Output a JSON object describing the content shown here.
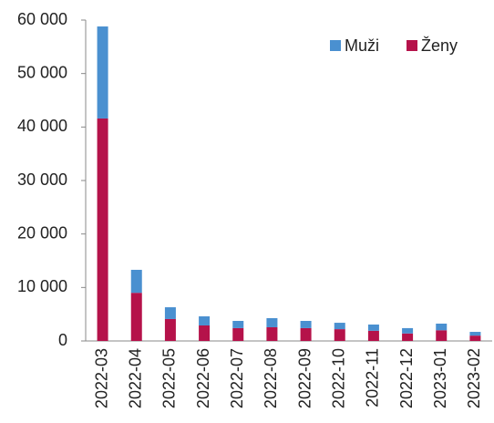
{
  "chart_data": {
    "type": "stacked_bar",
    "categories": [
      "2022-03",
      "2022-04",
      "2022-05",
      "2022-06",
      "2022-07",
      "2022-08",
      "2022-09",
      "2022-10",
      "2022-11",
      "2022-12",
      "2023-01",
      "2023-02"
    ],
    "series": [
      {
        "name": "Muži",
        "color": "#4a90d0",
        "values": [
          17200,
          4300,
          2200,
          1700,
          1350,
          1700,
          1350,
          1200,
          1170,
          1000,
          1240,
          700
        ]
      },
      {
        "name": "Ženy",
        "color": "#b5124a",
        "values": [
          41600,
          9000,
          4100,
          2900,
          2400,
          2560,
          2400,
          2200,
          1900,
          1400,
          2000,
          1000
        ]
      }
    ],
    "ylim": [
      0,
      60000
    ],
    "yticks": [
      0,
      {
        "value": 10000,
        "label": "10 000"
      },
      {
        "value": 20000,
        "label": "20 000"
      },
      {
        "value": 30000,
        "label": "30 000"
      },
      {
        "value": 40000,
        "label": "40 000"
      },
      {
        "value": 50000,
        "label": "50 000"
      },
      {
        "value": 60000,
        "label": "60 000"
      }
    ],
    "legend": "top-right",
    "grid": false
  }
}
